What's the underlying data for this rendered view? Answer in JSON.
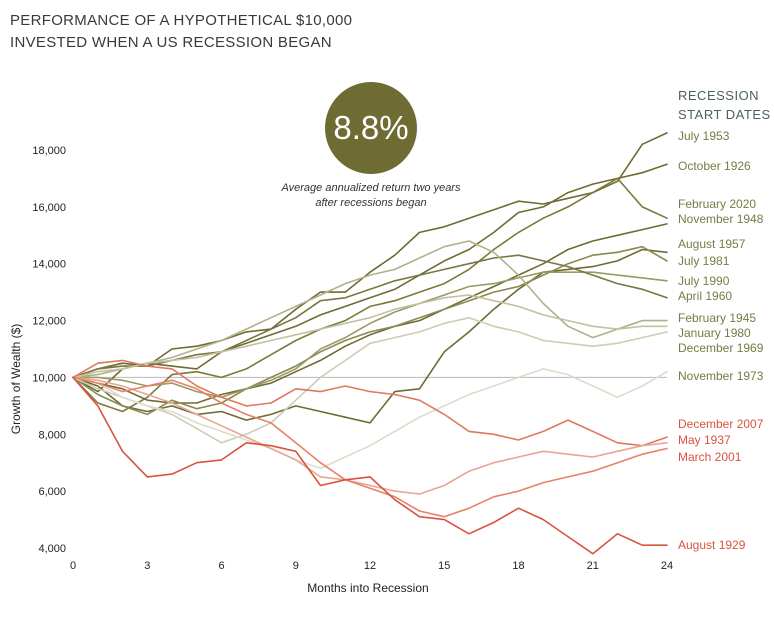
{
  "title_lines": [
    "PERFORMANCE OF A HYPOTHETICAL $10,000",
    "INVESTED WHEN A US RECESSION BEGAN"
  ],
  "badge": {
    "value": "8.8%",
    "caption_line1": "Average annualized return two years",
    "caption_line2": "after recessions began",
    "color": "#6e6b33"
  },
  "legend_title": [
    "RECESSION",
    "START DATES"
  ],
  "chart_data": {
    "type": "line",
    "title": "PERFORMANCE OF A HYPOTHETICAL $10,000 INVESTED WHEN A US RECESSION BEGAN",
    "xlabel": "Months into Recession",
    "ylabel": "Growth of Wealth ($)",
    "xlim": [
      0,
      24
    ],
    "ylim": [
      3800,
      19000
    ],
    "x_ticks": [
      0,
      3,
      6,
      9,
      12,
      15,
      18,
      21,
      24
    ],
    "y_ticks": [
      4000,
      6000,
      8000,
      10000,
      12000,
      14000,
      16000,
      18000
    ],
    "y_tick_labels": [
      "4,000",
      "6,000",
      "8,000",
      "10,000",
      "12,000",
      "14,000",
      "16,000",
      "18,000"
    ],
    "baseline": 10000,
    "x": [
      0,
      1,
      2,
      3,
      4,
      5,
      6,
      7,
      8,
      9,
      10,
      11,
      12,
      13,
      14,
      15,
      16,
      17,
      18,
      19,
      20,
      21,
      22,
      23,
      24
    ],
    "series": [
      {
        "name": "July 1953",
        "color": "#6e6b33",
        "values": [
          10000,
          10300,
          10500,
          10400,
          11000,
          11100,
          11300,
          11600,
          11700,
          12400,
          13000,
          13000,
          13700,
          14300,
          15100,
          15300,
          15600,
          15900,
          16200,
          16100,
          16300,
          16500,
          16900,
          18200,
          18600
        ]
      },
      {
        "name": "October 1926",
        "color": "#6e6b33",
        "values": [
          10000,
          9500,
          10300,
          10500,
          10400,
          10300,
          10900,
          11200,
          11500,
          11800,
          12200,
          12500,
          12800,
          13100,
          13600,
          14100,
          14500,
          15100,
          15800,
          16000,
          16500,
          16800,
          17000,
          17200,
          17500
        ]
      },
      {
        "name": "February 2020",
        "color": "#7a7a3a",
        "values": [
          10000,
          9100,
          8800,
          9300,
          10100,
          10200,
          10000,
          10300,
          10800,
          11300,
          11700,
          12000,
          12500,
          12700,
          13000,
          13300,
          13800,
          14500,
          15100,
          15600,
          16000,
          16500,
          17000,
          16000,
          15600
        ]
      },
      {
        "name": "November 1948",
        "color": "#6e6b33",
        "values": [
          10000,
          9800,
          9600,
          9200,
          9100,
          9100,
          9400,
          9600,
          9800,
          10200,
          10600,
          11100,
          11500,
          11800,
          12000,
          12400,
          12800,
          13200,
          13600,
          14000,
          14500,
          14800,
          15000,
          15200,
          15400
        ]
      },
      {
        "name": "August 1957",
        "color": "#6e6b33",
        "values": [
          10000,
          9700,
          9000,
          8800,
          9000,
          8700,
          8800,
          8500,
          8700,
          9000,
          8800,
          8600,
          8400,
          9500,
          9600,
          10900,
          11600,
          12400,
          13100,
          13700,
          13800,
          13900,
          14100,
          14500,
          14400
        ]
      },
      {
        "name": "July 1981",
        "color": "#8a8a4e",
        "values": [
          10000,
          9400,
          9000,
          8700,
          9200,
          8900,
          9100,
          9600,
          10000,
          10400,
          10900,
          11300,
          11600,
          11800,
          12100,
          12400,
          12700,
          13000,
          13200,
          13600,
          14000,
          14300,
          14400,
          14600,
          14100
        ]
      },
      {
        "name": "July 1990",
        "color": "#9a9a64",
        "values": [
          10000,
          10000,
          9900,
          9700,
          9800,
          9500,
          9300,
          9600,
          9900,
          10300,
          11000,
          11400,
          11900,
          12300,
          12600,
          12900,
          13200,
          13300,
          13500,
          13700,
          13700,
          13700,
          13600,
          13500,
          13400
        ]
      },
      {
        "name": "April 1960",
        "color": "#77773e",
        "values": [
          10000,
          10300,
          10400,
          10400,
          10600,
          10800,
          10900,
          11300,
          11700,
          12100,
          12700,
          12800,
          13100,
          13400,
          13600,
          13800,
          14000,
          14200,
          14300,
          14100,
          13900,
          13600,
          13300,
          13100,
          12800
        ]
      },
      {
        "name": "February 1945",
        "color": "#b2b089",
        "values": [
          10000,
          10100,
          10300,
          10500,
          10700,
          11000,
          11300,
          11700,
          12100,
          12500,
          12900,
          13300,
          13600,
          13800,
          14200,
          14600,
          14800,
          14400,
          13600,
          12600,
          11800,
          11400,
          11700,
          12000,
          12000
        ]
      },
      {
        "name": "January 1980",
        "color": "#c3c0a2",
        "values": [
          10000,
          10200,
          10300,
          10500,
          10600,
          10700,
          10900,
          11100,
          11300,
          11500,
          11700,
          11900,
          12100,
          12400,
          12600,
          12800,
          12900,
          12700,
          12500,
          12200,
          12000,
          11800,
          11700,
          11800,
          11800
        ]
      },
      {
        "name": "December 1969",
        "color": "#cfccb4",
        "values": [
          10000,
          9600,
          9300,
          9000,
          8700,
          8200,
          7700,
          8000,
          8400,
          9200,
          10000,
          10600,
          11200,
          11400,
          11600,
          11900,
          12100,
          11800,
          11600,
          11300,
          11200,
          11100,
          11200,
          11400,
          11600
        ]
      },
      {
        "name": "November 1973",
        "color": "#dedbcb",
        "values": [
          10000,
          9800,
          9300,
          9000,
          8800,
          8400,
          8100,
          7800,
          7500,
          7100,
          6800,
          7200,
          7600,
          8100,
          8600,
          9000,
          9400,
          9700,
          10000,
          10300,
          10100,
          9700,
          9300,
          9700,
          10200
        ]
      },
      {
        "name": "December 2007",
        "color": "#e07860",
        "values": [
          10000,
          10500,
          10600,
          10400,
          10300,
          9700,
          9300,
          9000,
          9100,
          9600,
          9500,
          9700,
          9500,
          9400,
          9200,
          8700,
          8100,
          8000,
          7800,
          8100,
          8500,
          8100,
          7700,
          7600,
          7900
        ]
      },
      {
        "name": "May 1937",
        "color": "#e9a592",
        "values": [
          10000,
          9900,
          9700,
          9400,
          9100,
          8700,
          8300,
          7900,
          7500,
          7100,
          6500,
          6400,
          6200,
          6000,
          5900,
          6200,
          6700,
          7000,
          7200,
          7400,
          7300,
          7200,
          7400,
          7600,
          7700
        ]
      },
      {
        "name": "March 2001",
        "color": "#e8806a",
        "values": [
          10000,
          9800,
          9500,
          9700,
          9900,
          9600,
          9100,
          8700,
          8400,
          7700,
          7000,
          6400,
          6100,
          5800,
          5300,
          5100,
          5400,
          5800,
          6000,
          6300,
          6500,
          6700,
          7000,
          7300,
          7500
        ]
      },
      {
        "name": "August 1929",
        "color": "#d9543f",
        "values": [
          10000,
          9000,
          7400,
          6500,
          6600,
          7000,
          7100,
          7700,
          7600,
          7400,
          6200,
          6400,
          6500,
          5700,
          5100,
          5000,
          4500,
          4900,
          5400,
          5000,
          4400,
          3800,
          4500,
          4100,
          4100
        ]
      }
    ],
    "legend": [
      {
        "label": "July 1953",
        "color": "#7a7a44"
      },
      {
        "label": "October 1926",
        "color": "#7a7a44"
      },
      {
        "label": "February 2020",
        "color": "#7a7a44"
      },
      {
        "label": "November 1948",
        "color": "#7a7a44"
      },
      {
        "label": "August 1957",
        "color": "#7a7a44"
      },
      {
        "label": "July 1981",
        "color": "#7a7a44"
      },
      {
        "label": "July 1990",
        "color": "#7a7a44"
      },
      {
        "label": "April 1960",
        "color": "#7a7a44"
      },
      {
        "label": "February 1945",
        "color": "#7a7a44"
      },
      {
        "label": "January 1980",
        "color": "#7a7a44"
      },
      {
        "label": "December 1969",
        "color": "#7a7a44"
      },
      {
        "label": "November 1973",
        "color": "#7a7a44"
      },
      {
        "label": "December 2007",
        "color": "#d9543f"
      },
      {
        "label": "May 1937",
        "color": "#d9543f"
      },
      {
        "label": "March 2001",
        "color": "#d9543f"
      },
      {
        "label": "August 1929",
        "color": "#d9543f"
      }
    ]
  }
}
